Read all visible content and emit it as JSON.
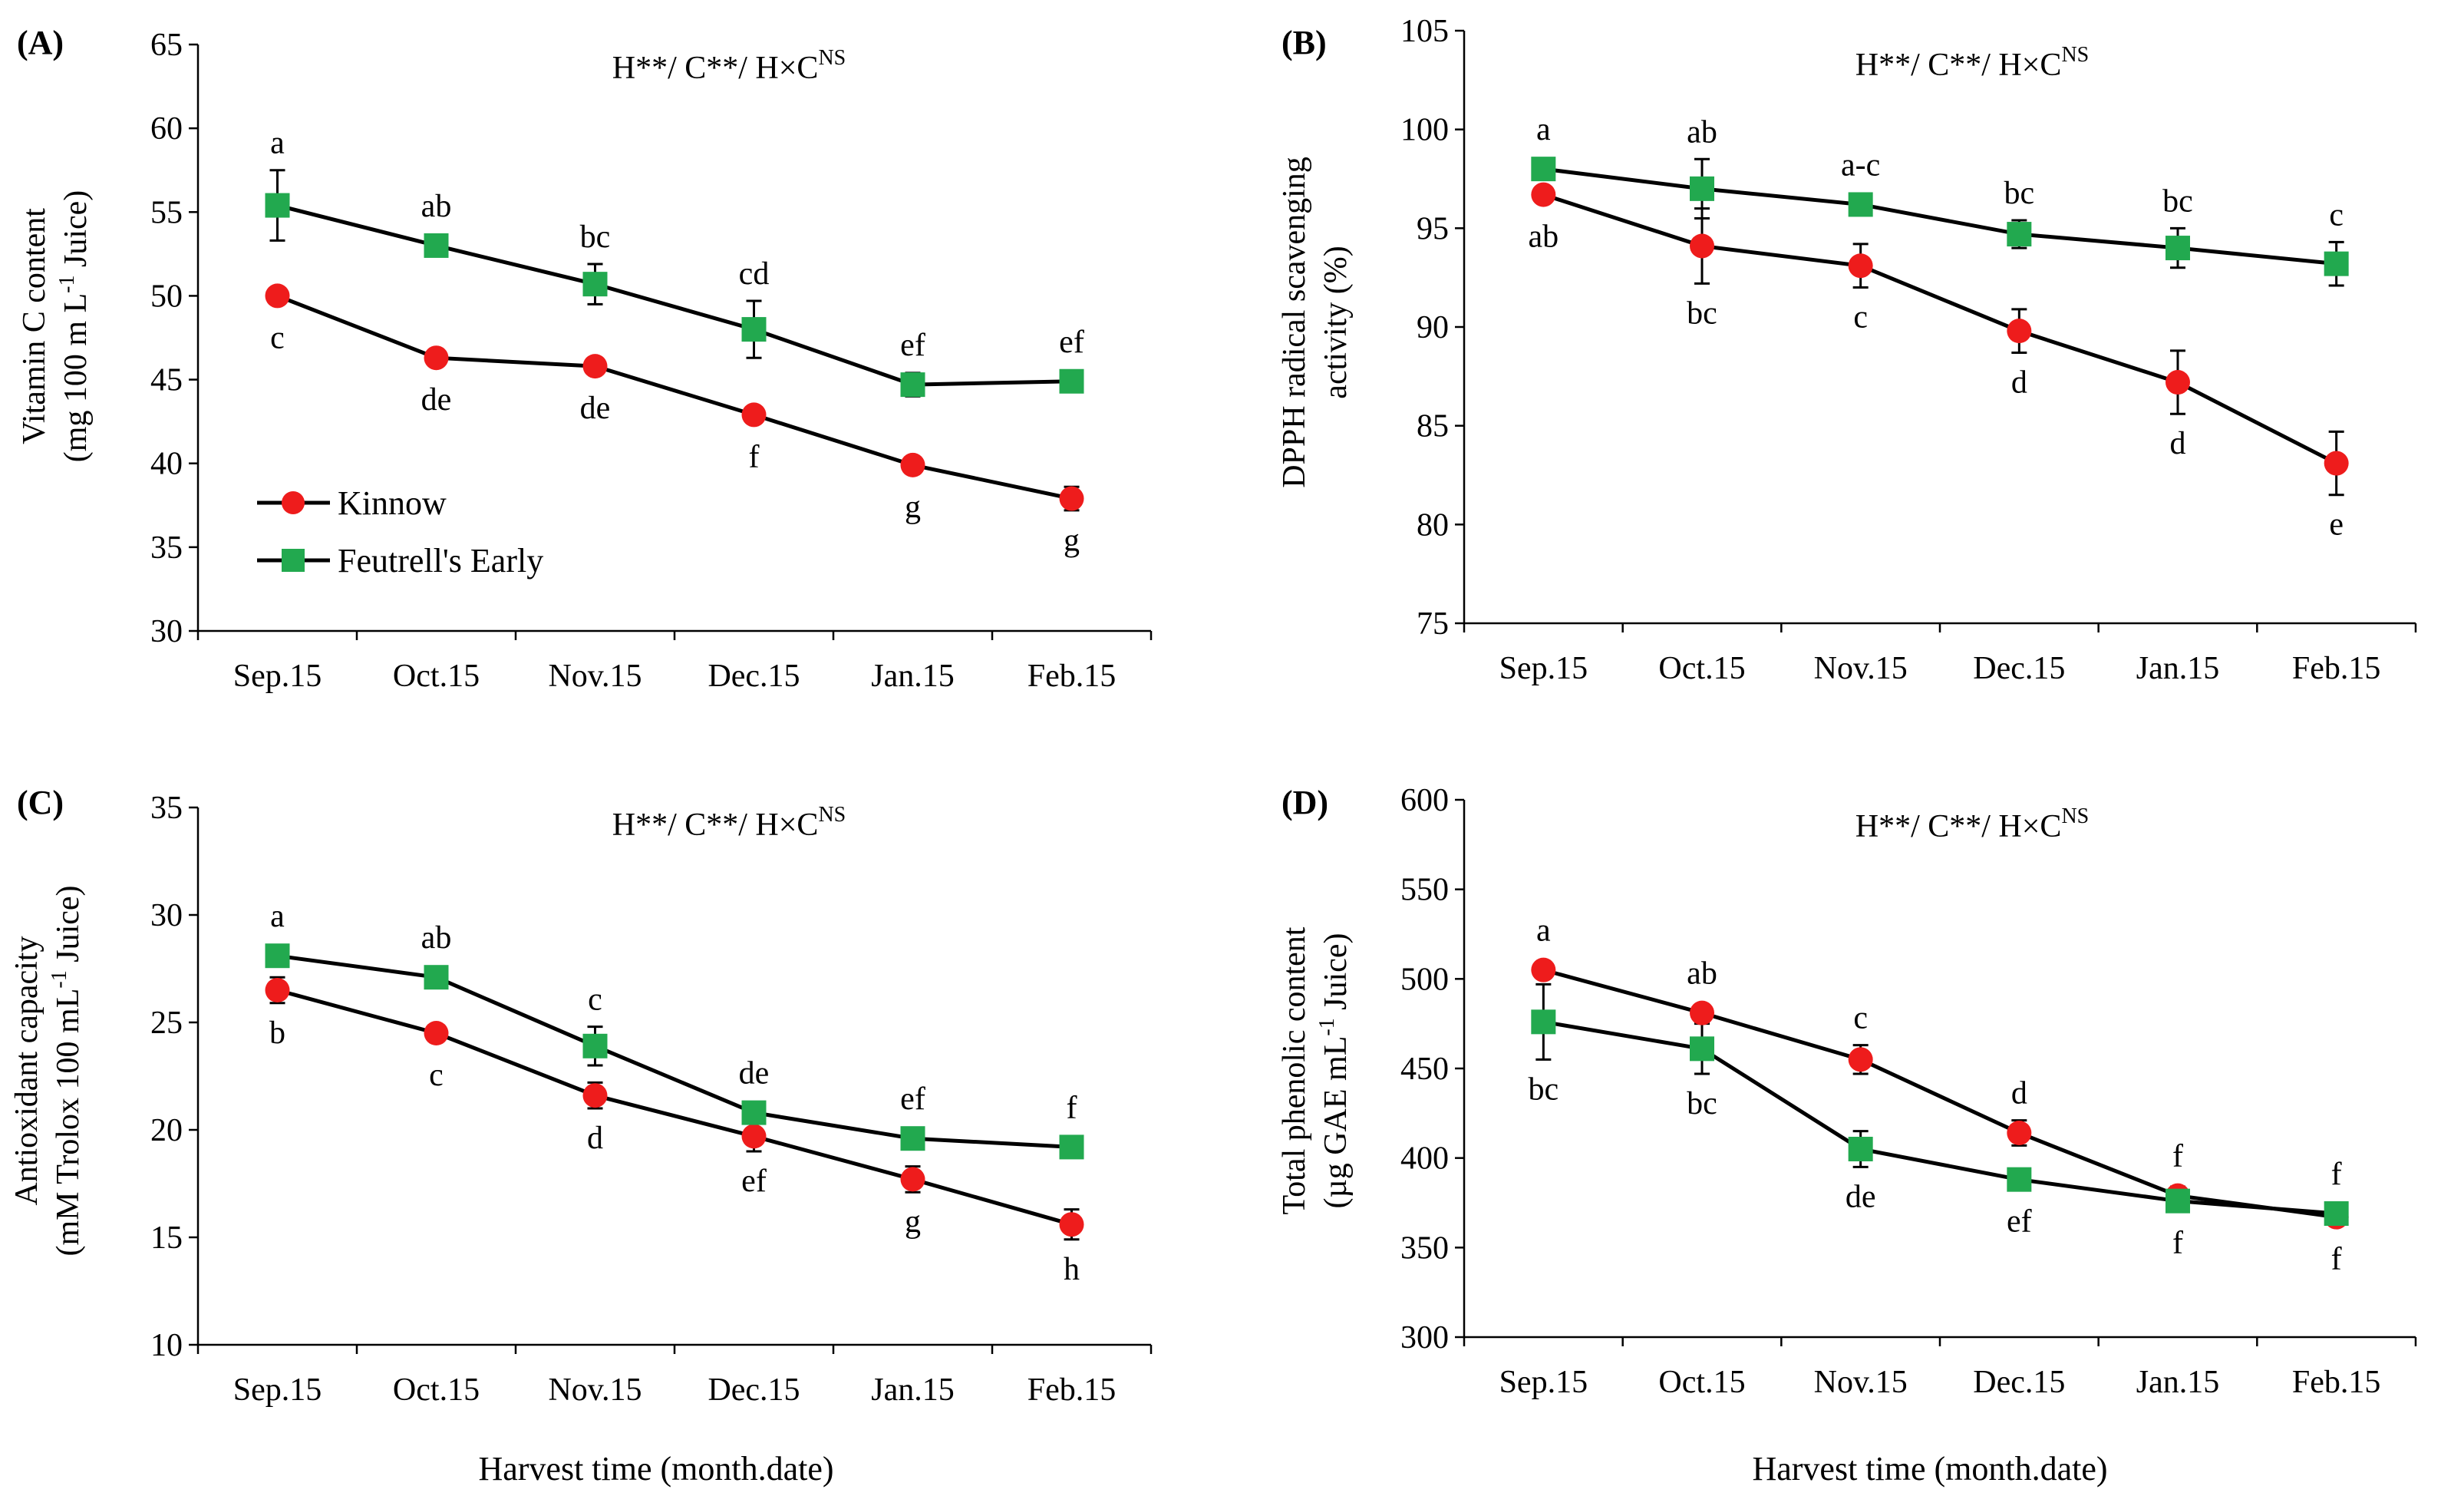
{
  "colors": {
    "kinnow": "#ee1c1c",
    "feutrell": "#22a94f",
    "line": "#000000"
  },
  "legend": {
    "kinnow": "Kinnow",
    "feutrell": "Feutrell's Early"
  },
  "x_axis_title": "Harvest time (month.date)",
  "chart_data": [
    {
      "type": "line",
      "panel_label": "(A)",
      "stat": {
        "prefix": "H**/ C**/ H×C",
        "sup": "NS"
      },
      "categories": [
        "Sep.15",
        "Oct.15",
        "Nov.15",
        "Dec.15",
        "Jan.15",
        "Feb.15"
      ],
      "ylabel_line1": "Vitamin  C content",
      "ylabel_line2": {
        "pre": "(mg 100 m L",
        "sup": "-1",
        "post": " Juice)"
      },
      "ylim": [
        30,
        65
      ],
      "yticks": [
        30,
        35,
        40,
        45,
        50,
        55,
        60,
        65
      ],
      "legend_position": "left-bottom",
      "series": [
        {
          "name": "Kinnow",
          "values": [
            50.0,
            46.3,
            45.8,
            42.9,
            39.9,
            37.9
          ],
          "err": [
            0.4,
            0.5,
            0.5,
            0.5,
            0.5,
            0.7
          ],
          "labels": [
            "c",
            "de",
            "de",
            "f",
            "g",
            "g"
          ],
          "label_pos": [
            "below",
            "below",
            "below",
            "below",
            "below",
            "below"
          ]
        },
        {
          "name": "Feutrell's Early",
          "values": [
            55.4,
            53.0,
            50.7,
            48.0,
            44.7,
            44.9
          ],
          "err": [
            2.1,
            0.5,
            1.2,
            1.7,
            0.7,
            0.6
          ],
          "labels": [
            "a",
            "ab",
            "bc",
            "cd",
            "ef",
            "ef"
          ],
          "label_pos": [
            "above",
            "above",
            "above",
            "above",
            "above",
            "above"
          ]
        }
      ]
    },
    {
      "type": "line",
      "panel_label": "(B)",
      "stat": {
        "prefix": "H**/ C**/ H×C",
        "sup": "NS"
      },
      "categories": [
        "Sep.15",
        "Oct.15",
        "Nov.15",
        "Dec.15",
        "Jan.15",
        "Feb.15"
      ],
      "ylabel_line1": "DPPH radical scavenging",
      "ylabel_line2": {
        "pre": "activity  (%)",
        "sup": "",
        "post": ""
      },
      "ylim": [
        75,
        105
      ],
      "yticks": [
        75,
        80,
        85,
        90,
        95,
        100,
        105
      ],
      "series": [
        {
          "name": "Kinnow",
          "values": [
            96.7,
            94.1,
            93.1,
            89.8,
            87.2,
            83.1
          ],
          "err": [
            0.3,
            1.9,
            1.1,
            1.1,
            1.6,
            1.6
          ],
          "labels": [
            "ab",
            "bc",
            "c",
            "d",
            "d",
            "e"
          ],
          "label_pos": [
            "below",
            "below",
            "below",
            "below",
            "below",
            "below"
          ]
        },
        {
          "name": "Feutrell's Early",
          "values": [
            98.0,
            97.0,
            96.2,
            94.7,
            94.0,
            93.2
          ],
          "err": [
            0.4,
            1.5,
            0.3,
            0.7,
            1.0,
            1.1
          ],
          "labels": [
            "a",
            "ab",
            "a-c",
            "bc",
            "bc",
            "c"
          ],
          "label_pos": [
            "above",
            "above",
            "above",
            "above",
            "above",
            "above"
          ]
        }
      ]
    },
    {
      "type": "line",
      "panel_label": "(C)",
      "stat": {
        "prefix": "H**/ C**/ H×C",
        "sup": "NS"
      },
      "categories": [
        "Sep.15",
        "Oct.15",
        "Nov.15",
        "Dec.15",
        "Jan.15",
        "Feb.15"
      ],
      "ylabel_line1": "Antioxidant  capacity",
      "ylabel_line2": {
        "pre": "(mM Trolox 100 mL",
        "sup": "-1",
        "post": " Juice)"
      },
      "ylim": [
        10,
        35
      ],
      "yticks": [
        10,
        15,
        20,
        25,
        30,
        35
      ],
      "series": [
        {
          "name": "Kinnow",
          "values": [
            26.5,
            24.5,
            21.6,
            19.7,
            17.7,
            15.6
          ],
          "err": [
            0.6,
            0.3,
            0.6,
            0.7,
            0.6,
            0.7
          ],
          "labels": [
            "b",
            "c",
            "d",
            "ef",
            "g",
            "h"
          ],
          "label_pos": [
            "below",
            "below",
            "below",
            "below",
            "below",
            "below"
          ]
        },
        {
          "name": "Feutrell's Early",
          "values": [
            28.1,
            27.1,
            23.9,
            20.8,
            19.6,
            19.2
          ],
          "err": [
            0.3,
            0.4,
            0.9,
            0.3,
            0.3,
            0.3
          ],
          "labels": [
            "a",
            "ab",
            "c",
            "de",
            "ef",
            "f"
          ],
          "label_pos": [
            "above",
            "above",
            "above",
            "above",
            "above",
            "above"
          ]
        }
      ]
    },
    {
      "type": "line",
      "panel_label": "(D)",
      "stat": {
        "prefix": "H**/ C**/ H×C",
        "sup": "NS"
      },
      "categories": [
        "Sep.15",
        "Oct.15",
        "Nov.15",
        "Dec.15",
        "Jan.15",
        "Feb.15"
      ],
      "ylabel_line1": "Total phenolic  content",
      "ylabel_line2": {
        "pre": "(µg GAE mL",
        "sup": "-1",
        "post": " Juice)"
      },
      "ylim": [
        300,
        600
      ],
      "yticks": [
        300,
        350,
        400,
        450,
        500,
        550,
        600
      ],
      "series": [
        {
          "name": "Kinnow",
          "values": [
            505,
            481,
            455,
            414,
            379,
            367
          ],
          "err": [
            4,
            4,
            8,
            7,
            5,
            3
          ],
          "labels": [
            "a",
            "ab",
            "c",
            "d",
            "f",
            "f"
          ],
          "label_pos": [
            "above",
            "above",
            "above",
            "above",
            "above",
            "below"
          ]
        },
        {
          "name": "Feutrell's Early",
          "values": [
            476,
            461,
            405,
            388,
            376,
            369
          ],
          "err": [
            21,
            14,
            10,
            4,
            3,
            4
          ],
          "labels": [
            "bc",
            "bc",
            "de",
            "ef",
            "f",
            "f"
          ],
          "label_pos": [
            "below",
            "below",
            "below",
            "below",
            "below",
            "above"
          ]
        }
      ]
    }
  ]
}
